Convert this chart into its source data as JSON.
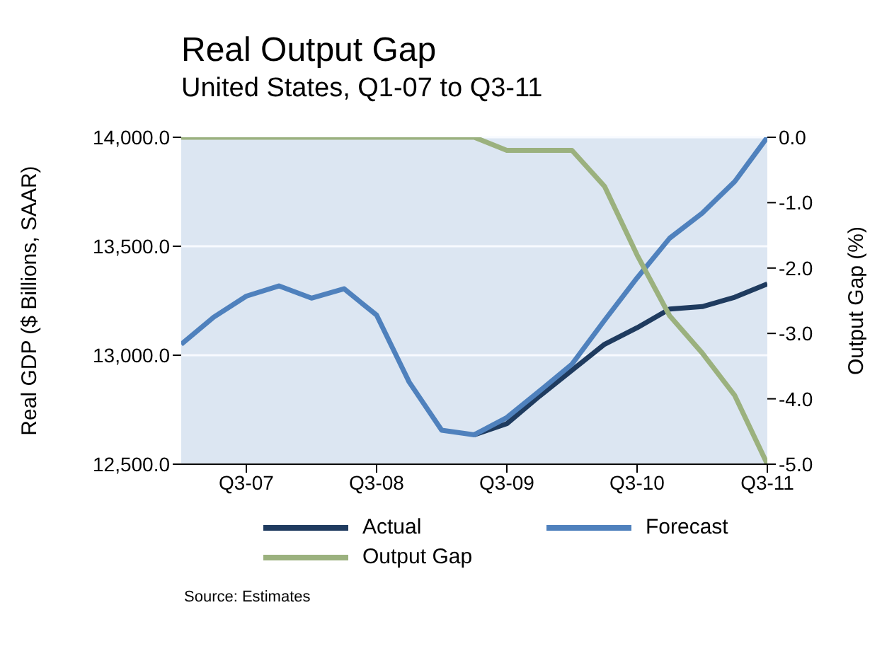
{
  "chart_data": {
    "type": "line",
    "title": "Real Output Gap",
    "subtitle": "United States, Q1-07 to Q3-11",
    "ylabel": "Real GDP ($ Billions, SAAR)",
    "y2label": "Output Gap (%)",
    "categories": [
      null,
      null,
      "Q3-07",
      null,
      null,
      null,
      "Q3-08",
      null,
      null,
      null,
      "Q3-09",
      null,
      null,
      null,
      "Q3-10",
      null,
      null,
      null,
      "Q3-11"
    ],
    "series": [
      {
        "name": "Actual",
        "color": "#1f3b5f",
        "values": [
          null,
          null,
          null,
          null,
          null,
          null,
          null,
          null,
          null,
          12635,
          12686,
          12812,
          12931,
          13050,
          13126,
          13212,
          13223,
          13266,
          13327
        ]
      },
      {
        "name": "Forecast",
        "color": "#4f81bd",
        "values": [
          13050,
          13175,
          13271,
          13318,
          13262,
          13305,
          13184,
          12877,
          12656,
          12635,
          12714,
          12835,
          12959,
          13160,
          13355,
          13537,
          13652,
          13797,
          14000
        ]
      },
      {
        "name": "Output Gap",
        "color": "#9bb17e",
        "axis": "y2",
        "values": [
          0,
          0,
          0,
          0,
          0,
          0,
          0,
          0,
          0,
          0,
          -0.2,
          -0.2,
          -0.2,
          -0.75,
          -1.8,
          -2.73,
          -3.3,
          -3.95,
          -5.0
        ]
      }
    ],
    "ylim": [
      12500,
      14000
    ],
    "yticks": [
      {
        "value": 12500,
        "label": "12,500.0"
      },
      {
        "value": 13000,
        "label": "13,000.0"
      },
      {
        "value": 13500,
        "label": "13,500.0"
      },
      {
        "value": 14000,
        "label": "14,000.0"
      }
    ],
    "y2lim": [
      -5,
      0
    ],
    "y2ticks": [
      {
        "value": -5,
        "label": "-5.0"
      },
      {
        "value": -4,
        "label": "-4.0"
      },
      {
        "value": -3,
        "label": "-3.0"
      },
      {
        "value": -2,
        "label": "-2.0"
      },
      {
        "value": -1,
        "label": "-1.0"
      },
      {
        "value": 0,
        "label": "0.0"
      }
    ],
    "grid": "y",
    "legend": "bottom",
    "marker": "none",
    "line_style": "solid",
    "annotations": [
      "Source: Estimates"
    ]
  }
}
